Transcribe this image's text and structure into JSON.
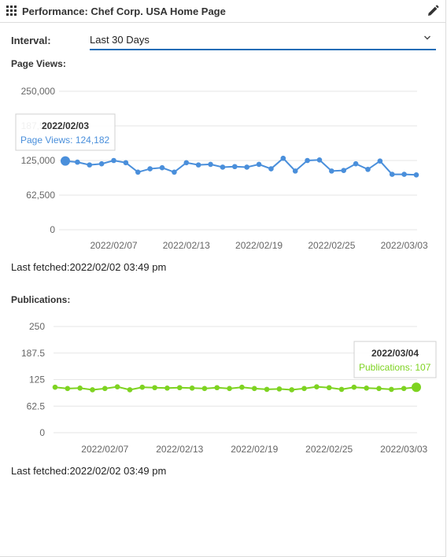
{
  "header": {
    "title": "Performance: Chef Corp. USA Home Page"
  },
  "interval": {
    "label": "Interval:",
    "selected": "Last 30 Days"
  },
  "colors": {
    "pageviews": "#4a8fdb",
    "publications": "#7ed321",
    "accent": "#1f6db6"
  },
  "page_views": {
    "label": "Page Views:",
    "last_fetched": "Last fetched:2022/02/02 03:49 pm",
    "tooltip": {
      "date": "2022/02/03",
      "text": "Page Views: 124,182"
    },
    "chart_data": {
      "type": "line",
      "ylim": [
        0,
        250000
      ],
      "y_ticks": [
        "250,000",
        "187,500",
        "125,000",
        "62,500",
        "0"
      ],
      "x_ticks": [
        "2022/02/07",
        "2022/02/13",
        "2022/02/19",
        "2022/02/25",
        "2022/03/03"
      ],
      "x": [
        "2022/02/03",
        "2022/02/04",
        "2022/02/05",
        "2022/02/06",
        "2022/02/07",
        "2022/02/08",
        "2022/02/09",
        "2022/02/10",
        "2022/02/11",
        "2022/02/12",
        "2022/02/13",
        "2022/02/14",
        "2022/02/15",
        "2022/02/16",
        "2022/02/17",
        "2022/02/18",
        "2022/02/19",
        "2022/02/20",
        "2022/02/21",
        "2022/02/22",
        "2022/02/23",
        "2022/02/24",
        "2022/02/25",
        "2022/02/26",
        "2022/02/27",
        "2022/02/28",
        "2022/03/01",
        "2022/03/02",
        "2022/03/03",
        "2022/03/04"
      ],
      "series": [
        {
          "values": [
            124182,
            122000,
            117000,
            119000,
            125000,
            121000,
            104000,
            110000,
            112000,
            104000,
            121000,
            117000,
            118000,
            113000,
            114000,
            113000,
            118000,
            110000,
            129000,
            106000,
            125000,
            126000,
            106000,
            107000,
            119000,
            109000,
            124000,
            100000,
            100000,
            99000
          ]
        }
      ],
      "highlight_index": 0
    }
  },
  "publications": {
    "label": "Publications:",
    "last_fetched": "Last fetched:2022/02/02 03:49 pm",
    "tooltip": {
      "date": "2022/03/04",
      "text": "Publications: 107"
    },
    "chart_data": {
      "type": "line",
      "ylim": [
        0,
        250
      ],
      "y_ticks": [
        "250",
        "187.5",
        "125",
        "62.5",
        "0"
      ],
      "x_ticks": [
        "2022/02/07",
        "2022/02/13",
        "2022/02/19",
        "2022/02/25",
        "2022/03/03"
      ],
      "x": [
        "2022/02/03",
        "2022/02/04",
        "2022/02/05",
        "2022/02/06",
        "2022/02/07",
        "2022/02/08",
        "2022/02/09",
        "2022/02/10",
        "2022/02/11",
        "2022/02/12",
        "2022/02/13",
        "2022/02/14",
        "2022/02/15",
        "2022/02/16",
        "2022/02/17",
        "2022/02/18",
        "2022/02/19",
        "2022/02/20",
        "2022/02/21",
        "2022/02/22",
        "2022/02/23",
        "2022/02/24",
        "2022/02/25",
        "2022/02/26",
        "2022/02/27",
        "2022/02/28",
        "2022/03/01",
        "2022/03/02",
        "2022/03/03",
        "2022/03/04"
      ],
      "series": [
        {
          "values": [
            107,
            104,
            105,
            101,
            104,
            108,
            101,
            107,
            106,
            105,
            106,
            105,
            104,
            106,
            104,
            107,
            104,
            102,
            103,
            101,
            104,
            108,
            106,
            102,
            107,
            105,
            104,
            102,
            104,
            107
          ]
        }
      ],
      "highlight_index": 29
    }
  }
}
